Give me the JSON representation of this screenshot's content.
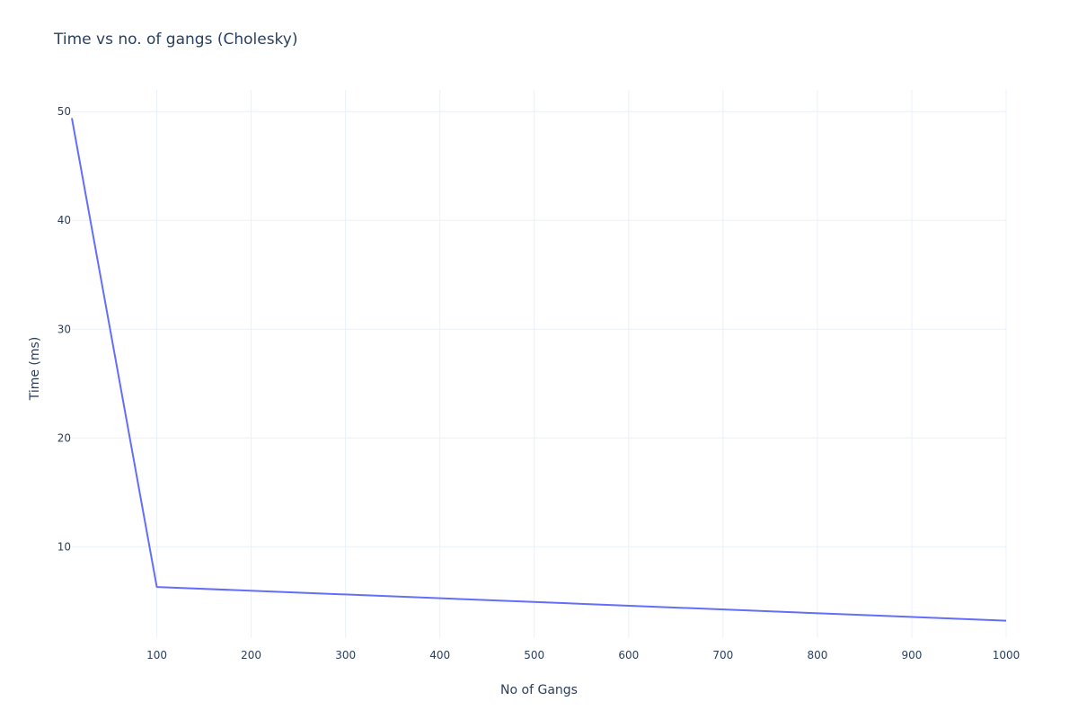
{
  "chart_data": {
    "type": "line",
    "title": "Time vs no. of gangs (Cholesky)",
    "xlabel": "No of Gangs",
    "ylabel": "Time (ms)",
    "x": [
      10,
      100,
      1000
    ],
    "series": [
      {
        "values": [
          49.4,
          6.3,
          3.2
        ],
        "color": "#636efa"
      }
    ],
    "xlim": [
      10,
      1000
    ],
    "ylim": [
      1.6,
      52
    ],
    "xticks": [
      100,
      200,
      300,
      400,
      500,
      600,
      700,
      800,
      900,
      1000
    ],
    "yticks": [
      10,
      20,
      30,
      40,
      50
    ],
    "grid": true,
    "legend": "none"
  }
}
